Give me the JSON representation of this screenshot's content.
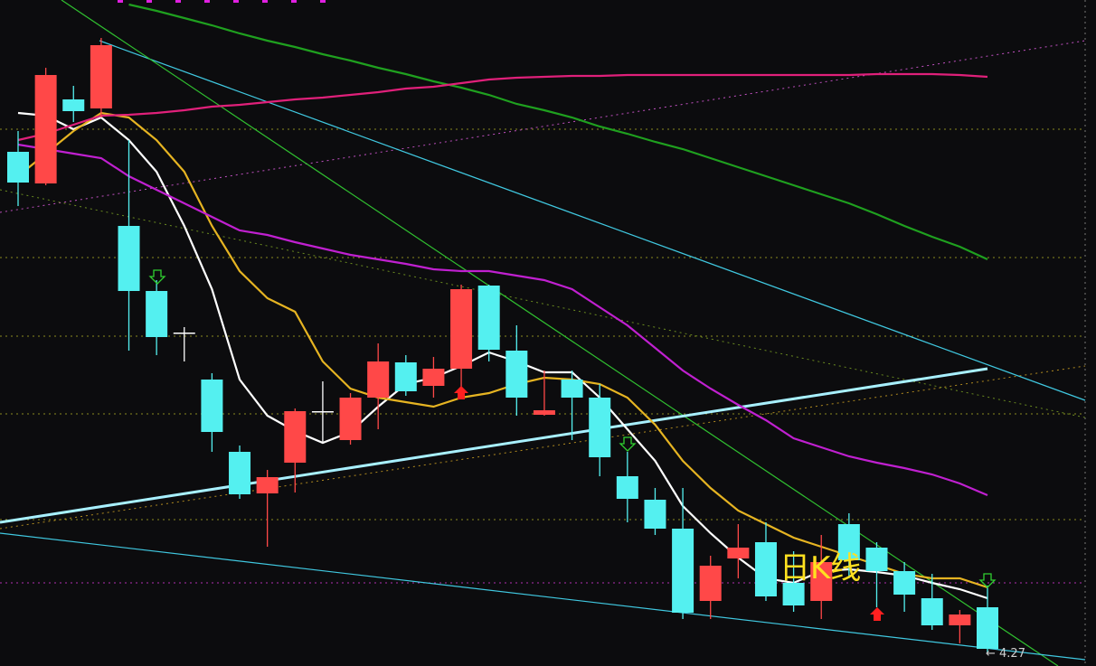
{
  "chart_data": {
    "type": "candlestick",
    "categories": [
      null,
      null,
      null,
      null,
      null,
      null,
      null,
      null,
      null,
      null,
      null,
      null,
      null,
      null,
      null,
      null,
      null,
      null,
      null,
      null,
      null,
      null,
      null,
      null,
      null,
      null,
      null,
      null,
      null,
      null,
      null,
      null,
      null,
      null,
      null,
      null
    ],
    "open": [
      6.486,
      6.346,
      6.718,
      6.678,
      6.158,
      5.87,
      5.686,
      5.478,
      5.158,
      4.974,
      5.11,
      5.338,
      5.21,
      5.398,
      5.554,
      5.45,
      5.526,
      5.894,
      5.606,
      5.322,
      5.478,
      5.398,
      5.05,
      4.946,
      4.818,
      4.498,
      4.686,
      4.758,
      4.578,
      4.498,
      4.838,
      4.734,
      4.63,
      4.51,
      4.39,
      4.47
    ],
    "high": [
      6.578,
      6.858,
      6.778,
      6.99,
      6.538,
      5.918,
      5.71,
      5.506,
      5.186,
      5.078,
      5.35,
      5.47,
      5.418,
      5.638,
      5.586,
      5.578,
      5.898,
      5.898,
      5.718,
      5.518,
      5.518,
      5.458,
      5.158,
      4.998,
      4.998,
      4.698,
      4.838,
      4.846,
      4.718,
      4.79,
      4.886,
      4.758,
      4.67,
      4.618,
      4.458,
      4.566
    ],
    "low": [
      6.246,
      6.338,
      6.618,
      6.638,
      5.606,
      5.586,
      5.558,
      5.158,
      4.95,
      4.738,
      4.978,
      5.198,
      5.19,
      5.258,
      5.406,
      5.398,
      5.418,
      5.558,
      5.318,
      5.318,
      5.21,
      5.05,
      4.846,
      4.79,
      4.418,
      4.418,
      4.598,
      4.498,
      4.45,
      4.418,
      4.598,
      4.47,
      4.45,
      4.37,
      4.31,
      4.27
    ],
    "close": [
      6.35,
      6.826,
      6.666,
      6.958,
      5.87,
      5.666,
      5.686,
      5.246,
      4.97,
      5.046,
      5.338,
      5.338,
      5.398,
      5.558,
      5.426,
      5.526,
      5.878,
      5.61,
      5.398,
      5.342,
      5.398,
      5.134,
      4.95,
      4.818,
      4.446,
      4.654,
      4.734,
      4.518,
      4.478,
      4.67,
      4.678,
      4.63,
      4.526,
      4.39,
      4.438,
      4.286
    ],
    "up_color": "#ff4848",
    "down_color": "#54f0f0",
    "ma_lines": [
      {
        "color": "#ffffff",
        "values": [
          6.658,
          6.646,
          6.586,
          6.638,
          6.538,
          6.398,
          6.158,
          5.878,
          5.478,
          5.318,
          5.25,
          5.198,
          5.246,
          5.358,
          5.458,
          5.486,
          5.538,
          5.598,
          5.558,
          5.51,
          5.51,
          5.398,
          5.258,
          5.118,
          4.918,
          4.798,
          4.69,
          4.598,
          4.578,
          4.63,
          4.638,
          4.626,
          4.61,
          4.578,
          4.55,
          4.51
        ]
      },
      {
        "color": "#e6b422",
        "values": [
          6.378,
          6.478,
          6.578,
          6.658,
          6.638,
          6.538,
          6.398,
          6.158,
          5.958,
          5.838,
          5.778,
          5.558,
          5.438,
          5.398,
          5.378,
          5.358,
          5.398,
          5.418,
          5.458,
          5.486,
          5.478,
          5.458,
          5.398,
          5.278,
          5.118,
          4.998,
          4.898,
          4.838,
          4.778,
          4.738,
          4.698,
          4.658,
          4.618,
          4.598,
          4.598,
          4.558
        ]
      },
      {
        "color": "#c020d0",
        "values": [
          6.518,
          6.498,
          6.478,
          6.458,
          6.378,
          6.318,
          6.258,
          6.198,
          6.138,
          6.118,
          6.086,
          6.058,
          6.03,
          6.01,
          5.99,
          5.966,
          5.958,
          5.958,
          5.938,
          5.918,
          5.878,
          5.798,
          5.718,
          5.618,
          5.518,
          5.438,
          5.366,
          5.298,
          5.218,
          5.178,
          5.138,
          5.11,
          5.086,
          5.058,
          5.018,
          4.966
        ]
      },
      {
        "color": "#1fa01f",
        "values": [
          null,
          null,
          null,
          null,
          7.138,
          7.11,
          7.078,
          7.046,
          7.01,
          6.978,
          6.95,
          6.918,
          6.89,
          6.858,
          6.83,
          6.798,
          6.77,
          6.738,
          6.698,
          6.67,
          6.638,
          6.598,
          6.566,
          6.53,
          6.498,
          6.458,
          6.418,
          6.378,
          6.338,
          6.298,
          6.258,
          6.21,
          6.158,
          6.11,
          6.066,
          6.01
        ]
      },
      {
        "color": "#e0207a",
        "values": [
          6.538,
          6.566,
          6.606,
          6.646,
          6.65,
          6.658,
          6.67,
          6.686,
          6.694,
          6.706,
          6.718,
          6.726,
          6.738,
          6.75,
          6.766,
          6.774,
          6.79,
          6.806,
          6.814,
          6.818,
          6.822,
          6.822,
          6.826,
          6.826,
          6.826,
          6.826,
          6.826,
          6.826,
          6.826,
          6.826,
          6.826,
          6.83,
          6.83,
          6.83,
          6.826,
          6.818
        ]
      }
    ],
    "ylim": [
      4.21,
      7.158
    ],
    "low_label": {
      "value": 4.27,
      "label": "← 4.27"
    },
    "overlay_label": "日K线"
  }
}
